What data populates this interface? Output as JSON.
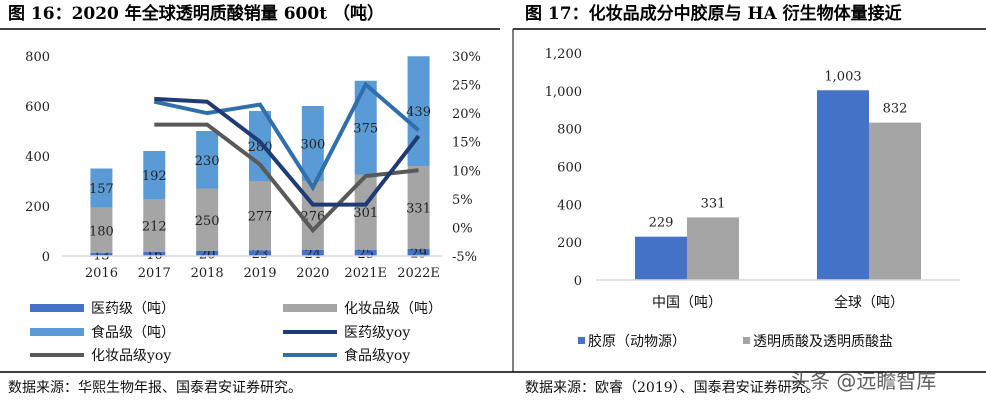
{
  "watermark": "头条 @远瞻智库",
  "chart_data": [
    {
      "type": "bar",
      "stacked": true,
      "title": "图 16：2020 年全球透明质酸销量 600t （吨）",
      "categories": [
        "2016",
        "2017",
        "2018",
        "2019",
        "2020",
        "2021E",
        "2022E"
      ],
      "y_ticks": [
        "0",
        "200",
        "400",
        "600",
        "800"
      ],
      "y2_ticks": [
        "-5%",
        "0%",
        "5%",
        "10%",
        "15%",
        "20%",
        "25%",
        "30%"
      ],
      "ylim": [
        0,
        800
      ],
      "y2lim": [
        -5,
        30
      ],
      "series": [
        {
          "name": "医药级（吨）",
          "color": "#4472c4",
          "values": [
            13,
            16,
            20,
            23,
            24,
            25,
            29
          ]
        },
        {
          "name": "化妆品级（吨）",
          "color": "#a5a5a5",
          "values": [
            180,
            212,
            250,
            277,
            276,
            301,
            331
          ]
        },
        {
          "name": "食品级（吨）",
          "color": "#5b9bd5",
          "values": [
            157,
            192,
            230,
            280,
            300,
            375,
            439
          ]
        }
      ],
      "lines": [
        {
          "name": "医药级yoy",
          "color": "#1f3b73",
          "values": [
            null,
            22.5,
            22,
            15,
            4,
            4,
            16
          ]
        },
        {
          "name": "化妆品级yoy",
          "color": "#595959",
          "values": [
            null,
            18,
            18,
            11,
            -0.5,
            9,
            10
          ]
        },
        {
          "name": "食品级yoy",
          "color": "#2e6fac",
          "values": [
            null,
            22,
            20,
            21.5,
            7,
            25,
            17
          ]
        }
      ],
      "legend": [
        "医药级（吨）",
        "化妆品级（吨）",
        "食品级（吨）",
        "医药级yoy",
        "化妆品级yoy",
        "食品级yoy"
      ],
      "source": "数据来源：华熙生物年报、国泰君安证券研究。"
    },
    {
      "type": "bar",
      "title": "图 17：化妆品成分中胶原与 HA 衍生物体量接近",
      "categories": [
        "中国（吨）",
        "全球（吨）"
      ],
      "y_ticks": [
        "0",
        "200",
        "400",
        "600",
        "800",
        "1,000",
        "1,200"
      ],
      "ylim": [
        0,
        1200
      ],
      "series": [
        {
          "name": "胶原（动物源）",
          "color": "#4472c4",
          "values": [
            229,
            1003
          ],
          "labels": [
            "229",
            "1,003"
          ]
        },
        {
          "name": "透明质酸及透明质酸盐",
          "color": "#a5a5a5",
          "values": [
            331,
            832
          ],
          "labels": [
            "331",
            "832"
          ]
        }
      ],
      "source": "数据来源：欧睿（2019）、国泰君安证券研究。"
    }
  ]
}
